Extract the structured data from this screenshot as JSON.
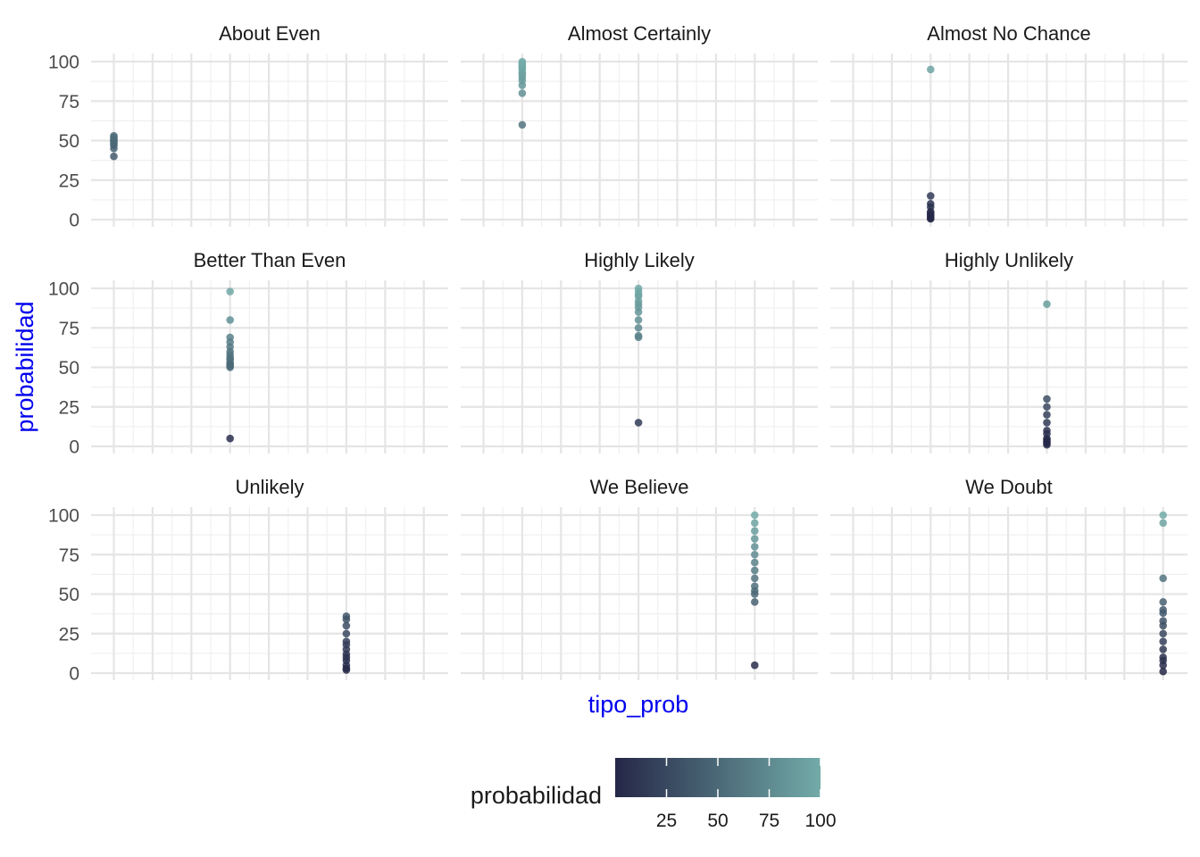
{
  "chart_data": {
    "type": "scatter",
    "facet": "tipo_prob",
    "xlabel": "tipo_prob",
    "ylabel": "probabilidad",
    "ylim": [
      0,
      100
    ],
    "y_ticks": [
      0,
      25,
      50,
      75,
      100
    ],
    "x_ticks_labelled": false,
    "grid": true,
    "categories": [
      "About Even",
      "Almost Certainly",
      "Almost No Chance",
      "Better Than Even",
      "Highly Likely",
      "Highly Unlikely",
      "Unlikely",
      "We Believe",
      "We Doubt"
    ],
    "facets": [
      {
        "title": "About Even",
        "x": "About Even",
        "values": [
          40,
          45,
          47,
          48,
          49,
          50,
          50,
          51,
          52,
          53
        ]
      },
      {
        "title": "Almost Certainly",
        "x": "Almost Certainly",
        "values": [
          60,
          80,
          85,
          88,
          90,
          92,
          93,
          95,
          96,
          97,
          98,
          99,
          100
        ]
      },
      {
        "title": "Almost No Chance",
        "x": "Almost No Chance",
        "values": [
          95,
          15,
          10,
          8,
          5,
          4,
          3,
          2,
          1,
          0.5
        ]
      },
      {
        "title": "Better Than Even",
        "x": "Better Than Even",
        "values": [
          98,
          80,
          69,
          66,
          63,
          60,
          58,
          56,
          55,
          53,
          52,
          51,
          50,
          5
        ]
      },
      {
        "title": "Highly Likely",
        "x": "Highly Likely",
        "values": [
          100,
          98,
          96,
          95,
          92,
          90,
          88,
          85,
          80,
          75,
          70,
          69,
          15
        ]
      },
      {
        "title": "Highly Unlikely",
        "x": "Highly Unlikely",
        "values": [
          90,
          30,
          25,
          20,
          15,
          10,
          8,
          5,
          4,
          3,
          2,
          1
        ]
      },
      {
        "title": "Unlikely",
        "x": "Unlikely",
        "values": [
          36,
          34,
          30,
          25,
          20,
          18,
          15,
          12,
          10,
          8,
          5,
          3,
          2
        ]
      },
      {
        "title": "We Believe",
        "x": "We Believe",
        "values": [
          100,
          95,
          90,
          85,
          80,
          75,
          70,
          65,
          60,
          55,
          52,
          50,
          45,
          5
        ]
      },
      {
        "title": "We Doubt",
        "x": "We Doubt",
        "values": [
          100,
          95,
          60,
          45,
          40,
          38,
          33,
          30,
          25,
          20,
          15,
          10,
          8,
          5,
          1
        ]
      }
    ],
    "color_scale": {
      "title": "probabilidad",
      "low_color": "#252747",
      "high_color": "#72ABA8",
      "domain": [
        0,
        100
      ],
      "ticks": [
        25,
        50,
        75,
        100
      ]
    },
    "legend_position": "bottom"
  }
}
